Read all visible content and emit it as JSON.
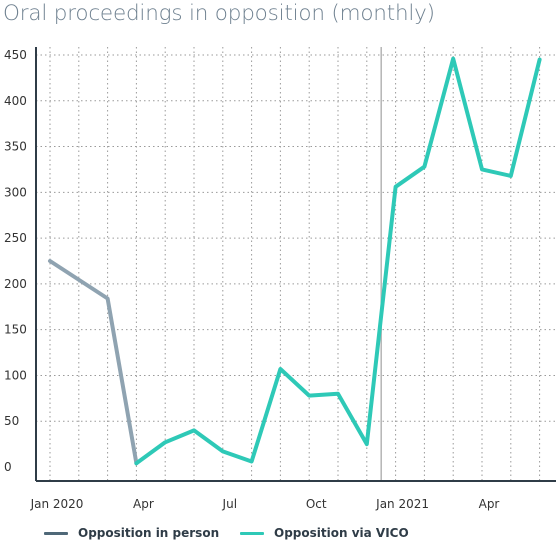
{
  "chart_data": {
    "type": "line",
    "title": "Oral proceedings in opposition (monthly)",
    "xlabel": "",
    "ylabel": "",
    "ylim": [
      0,
      450
    ],
    "yticks": [
      0,
      50,
      100,
      150,
      200,
      250,
      300,
      350,
      400,
      450
    ],
    "x_tick_labels": [
      {
        "month_index": 0,
        "label": "Jan 2020"
      },
      {
        "month_index": 3,
        "label": "Apr"
      },
      {
        "month_index": 6,
        "label": "Jul"
      },
      {
        "month_index": 9,
        "label": "Oct"
      },
      {
        "month_index": 12,
        "label": "Jan 2021"
      },
      {
        "month_index": 15,
        "label": "Apr"
      }
    ],
    "months": [
      "Jan 2020",
      "Feb 2020",
      "Mar 2020",
      "Apr 2020",
      "May 2020",
      "Jun 2020",
      "Jul 2020",
      "Aug 2020",
      "Sep 2020",
      "Oct 2020",
      "Nov 2020",
      "Dec 2020",
      "Jan 2021",
      "Feb 2021",
      "Mar 2021",
      "Apr 2021",
      "May 2021",
      "Jun 2021"
    ],
    "series": [
      {
        "name": "Opposition in person",
        "color": "#8fa3b1",
        "values": [
          225,
          null,
          184,
          4
        ]
      },
      {
        "name": "Opposition via VICO",
        "color": "#2ec9b7",
        "values": [
          null,
          null,
          null,
          4,
          27,
          40,
          17,
          6,
          107,
          78,
          80,
          25,
          306,
          328,
          446,
          325,
          318,
          445
        ]
      }
    ],
    "annotations": [
      {
        "type": "vertical-line",
        "between_months": [
          "Dec 2020",
          "Jan 2021"
        ],
        "color": "#b4b4b4"
      }
    ],
    "grid": {
      "x": true,
      "y": true,
      "style": "dotted"
    },
    "legend_position": "bottom"
  },
  "legend": {
    "items": [
      {
        "label": "Opposition in person",
        "color": "#4f6878"
      },
      {
        "label": "Opposition via VICO",
        "color": "#2ec9b7"
      }
    ]
  }
}
